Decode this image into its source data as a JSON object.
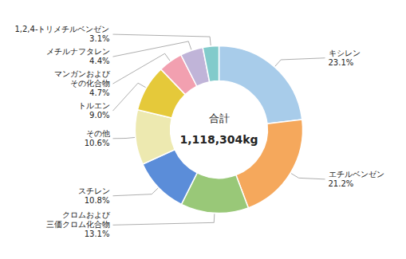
{
  "chart_data": {
    "type": "donut",
    "categories": [
      "キシレン",
      "エチルベンゼン",
      "クロムおよび\n三価クロム化合物",
      "スチレン",
      "その他",
      "トルエン",
      "マンガンおよび\nその化合物",
      "メチルナフタレン",
      "1,2,4-トリメチルベンゼン"
    ],
    "values": [
      23.1,
      21.2,
      13.1,
      10.8,
      10.6,
      9.0,
      4.7,
      4.4,
      3.1
    ],
    "value_labels": [
      "23.1%",
      "21.2%",
      "13.1%",
      "10.8%",
      "10.6%",
      "9.0%",
      "4.7%",
      "4.4%",
      "3.1%"
    ],
    "colors": [
      "#A8CCEA",
      "#F5A85C",
      "#99C878",
      "#5B8DD9",
      "#EDE9B0",
      "#E5C93A",
      "#F2A0B0",
      "#C0B4D8",
      "#82CBCB"
    ],
    "annotations": [
      "合計",
      "1,118,304kg"
    ],
    "data_labels": true
  }
}
